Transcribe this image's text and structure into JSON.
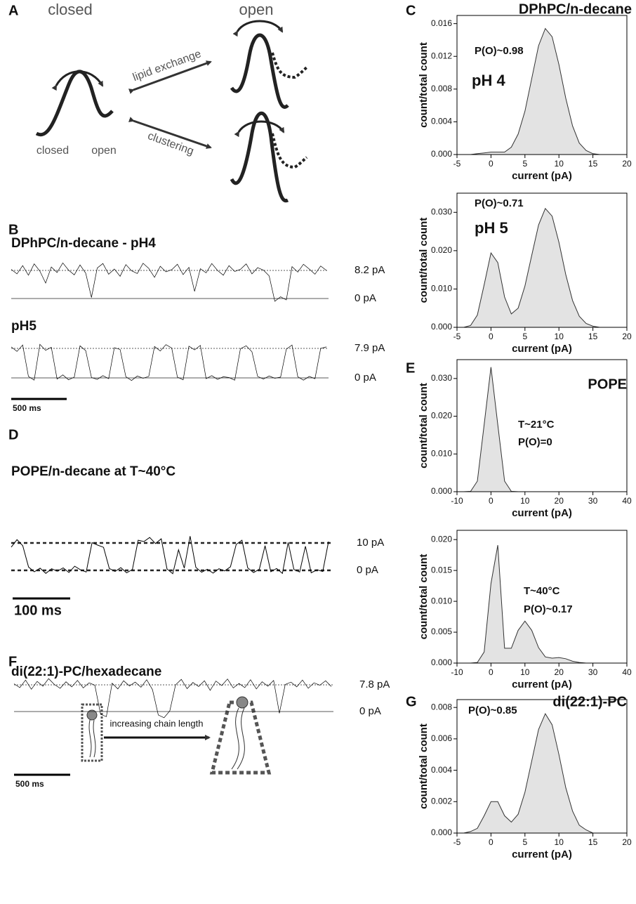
{
  "panel_letters": [
    "A",
    "B",
    "C",
    "D",
    "E",
    "F",
    "G"
  ],
  "diagram": {
    "closed": "closed",
    "open": "open",
    "lipid_exchange": "lipid exchange",
    "clustering": "clustering",
    "state_closed": "closed",
    "state_open": "open"
  },
  "traces": [
    {
      "title": "DPhPC/n-decane - pH4",
      "levels": [
        {
          "value": 8.2,
          "label": "8.2 pA"
        },
        {
          "value": 0,
          "label": "0 pA"
        }
      ],
      "values": [
        8.5,
        7.2,
        9.6,
        6.8,
        10.1,
        8.0,
        4.5,
        9.2,
        7.6,
        10.4,
        8.3,
        6.9,
        9.8,
        7.4,
        0.3,
        8.9,
        10.2,
        7.1,
        8.6,
        6.5,
        9.9,
        8.1,
        7.3,
        10.3,
        8.8,
        6.2,
        9.4,
        7.8,
        8.4,
        10.0,
        7.0,
        9.1,
        2.1,
        8.7,
        7.5,
        10.2,
        8.2,
        6.8,
        9.6,
        7.9,
        8.5,
        10.1,
        7.2,
        9.0,
        8.3,
        6.6,
        -0.8,
        0.5,
        -0.4,
        9.3,
        7.7,
        10.0,
        8.6,
        7.1,
        9.5,
        8.2
      ]
    },
    {
      "title": "pH5",
      "levels": [
        {
          "value": 7.9,
          "label": "7.9 pA"
        },
        {
          "value": 0,
          "label": "0 pA"
        }
      ],
      "scale_bar": "500 ms",
      "values": [
        8.3,
        7.1,
        8.8,
        0.4,
        -0.6,
        9.0,
        7.4,
        8.2,
        -0.3,
        0.8,
        -0.5,
        0.2,
        8.6,
        7.3,
        0.1,
        -0.4,
        0.6,
        -0.2,
        8.1,
        7.6,
        0.3,
        -0.7,
        0.5,
        -0.1,
        0.4,
        8.4,
        7.2,
        8.9,
        8.0,
        0.2,
        -0.5,
        8.5,
        7.5,
        8.7,
        -0.2,
        0.6,
        -0.4,
        0.3,
        0.1,
        -0.6,
        7.8,
        8.6,
        7.0,
        0.4,
        -0.3,
        0.5,
        -0.1,
        0.2,
        7.7,
        8.8,
        0.3,
        -0.6,
        0.4,
        -0.2,
        7.9,
        8.3
      ]
    },
    {
      "title": "POPE/n-decane at T~40°C",
      "levels": [
        {
          "value": 10,
          "label": "10 pA"
        },
        {
          "value": 0,
          "label": "0 pA"
        }
      ],
      "scale_bar": "100 ms",
      "values": [
        8.5,
        11.2,
        9.0,
        1.2,
        -0.5,
        0.8,
        -1.1,
        0.6,
        -0.3,
        0.9,
        -0.8,
        1.5,
        0.2,
        -0.6,
        10.1,
        9.2,
        8.4,
        0.7,
        -0.4,
        1.0,
        -0.9,
        0.3,
        11.0,
        10.5,
        12.0,
        9.8,
        11.5,
        0.5,
        -1.2,
        7.5,
        0.8,
        12.5,
        1.1,
        -0.7,
        0.4,
        -1.0,
        0.6,
        -0.2,
        1.3,
        9.5,
        11.0,
        0.9,
        -0.8,
        0.4,
        9.0,
        -0.5,
        0.7,
        -1.1,
        10.2,
        0.3,
        -0.6,
        8.8,
        -0.9,
        0.2,
        -0.4,
        10.5
      ]
    },
    {
      "title": "di(22:1)-PC/hexadecane",
      "chain_label": "increasing chain length",
      "levels": [
        {
          "value": 7.8,
          "label": "7.8 pA"
        },
        {
          "value": 0,
          "label": "0 pA"
        }
      ],
      "scale_bar": "500 ms",
      "values": [
        8.1,
        7.0,
        9.2,
        6.5,
        8.8,
        7.4,
        9.6,
        7.9,
        6.8,
        8.7,
        7.2,
        9.1,
        6.9,
        8.4,
        7.7,
        -0.8,
        -1.5,
        8.3,
        6.6,
        9.0,
        7.5,
        8.6,
        7.1,
        9.3,
        6.4,
        -1.0,
        -1.8,
        0.2,
        7.8,
        9.4,
        6.7,
        8.5,
        7.3,
        9.0,
        6.2,
        8.9,
        7.6,
        9.5,
        6.9,
        8.2,
        7.0,
        9.3,
        6.6,
        8.7,
        7.4,
        9.1,
        -0.5,
        7.9,
        8.6,
        7.2,
        9.2,
        6.8,
        8.4,
        7.7,
        9.0,
        7.3
      ]
    }
  ],
  "chart_data": [
    {
      "type": "area",
      "heading": "DPhPC/n-decane",
      "annotations": [
        "P(O)~0.98",
        "pH 4"
      ],
      "xlabel": "current (pA)",
      "ylabel": "count/total count",
      "color": "#e3e3e3",
      "x": [
        -5,
        -4,
        -3,
        -2,
        -1,
        0,
        1,
        2,
        3,
        4,
        5,
        6,
        7,
        8,
        9,
        10,
        11,
        12,
        13,
        14,
        15,
        16,
        17,
        18,
        19,
        20
      ],
      "values": [
        0,
        0,
        0,
        0.0001,
        0.0002,
        0.0003,
        0.0003,
        0.0003,
        0.0009,
        0.0025,
        0.0053,
        0.0093,
        0.0133,
        0.0154,
        0.0144,
        0.011,
        0.0069,
        0.0035,
        0.0014,
        0.0005,
        0.0001,
        0,
        0,
        0,
        0,
        0
      ],
      "xlim": [
        -5,
        20
      ],
      "xticks": [
        -5,
        0,
        5,
        10,
        15,
        20
      ],
      "ylim": [
        0,
        0.017
      ],
      "yticks": [
        {
          "value": 0,
          "label": "0.000"
        },
        {
          "value": 0.004,
          "label": "0.004"
        },
        {
          "value": 0.008,
          "label": "0.008"
        },
        {
          "value": 0.012,
          "label": "0.012"
        },
        {
          "value": 0.016,
          "label": "0.016"
        }
      ]
    },
    {
      "type": "area",
      "annotations": [
        "P(O)~0.71",
        "pH 5"
      ],
      "xlabel": "current (pA)",
      "ylabel": "count/total count",
      "color": "#e3e3e3",
      "x": [
        -5,
        -4,
        -3,
        -2,
        -1,
        0,
        1,
        2,
        3,
        4,
        5,
        6,
        7,
        8,
        9,
        10,
        11,
        12,
        13,
        14,
        15,
        16,
        17,
        18,
        19,
        20
      ],
      "values": [
        0,
        0,
        0.0005,
        0.0032,
        0.0111,
        0.0194,
        0.0169,
        0.0079,
        0.0035,
        0.005,
        0.0108,
        0.0188,
        0.0267,
        0.031,
        0.029,
        0.0222,
        0.0138,
        0.007,
        0.0029,
        0.001,
        0.0003,
        0,
        0,
        0,
        0,
        0
      ],
      "xlim": [
        -5,
        20
      ],
      "xticks": [
        -5,
        0,
        5,
        10,
        15,
        20
      ],
      "ylim": [
        0,
        0.035
      ],
      "yticks": [
        {
          "value": 0,
          "label": "0.000"
        },
        {
          "value": 0.01,
          "label": "0.010"
        },
        {
          "value": 0.02,
          "label": "0.020"
        },
        {
          "value": 0.03,
          "label": "0.030"
        }
      ]
    },
    {
      "type": "area",
      "heading": "POPE",
      "annotations": [
        "T~21°C",
        "P(O)=0"
      ],
      "xlabel": "current (pA)",
      "ylabel": "count/total count",
      "color": "#e3e3e3",
      "x": [
        -10,
        -8,
        -6,
        -4,
        -2,
        0,
        2,
        4,
        6,
        8,
        10,
        12,
        14,
        16,
        18,
        20,
        22,
        24,
        26,
        28,
        30,
        32,
        34,
        36,
        38,
        40
      ],
      "values": [
        0,
        0,
        0.0001,
        0.0028,
        0.0178,
        0.033,
        0.0178,
        0.0028,
        0.0001,
        0,
        0,
        0,
        0,
        0,
        0,
        0,
        0,
        0,
        0,
        0,
        0,
        0,
        0,
        0,
        0,
        0
      ],
      "xlim": [
        -10,
        40
      ],
      "xticks": [
        -10,
        0,
        10,
        20,
        30,
        40
      ],
      "ylim": [
        0,
        0.035
      ],
      "yticks": [
        {
          "value": 0,
          "label": "0.000"
        },
        {
          "value": 0.01,
          "label": "0.010"
        },
        {
          "value": 0.02,
          "label": "0.020"
        },
        {
          "value": 0.03,
          "label": "0.030"
        }
      ]
    },
    {
      "type": "area",
      "annotations": [
        "T~40°C",
        "P(O)~0.17"
      ],
      "xlabel": "current (pA)",
      "ylabel": "count/total count",
      "color": "#e3e3e3",
      "x": [
        -10,
        -8,
        -6,
        -4,
        -2,
        0,
        2,
        4,
        6,
        8,
        10,
        12,
        14,
        16,
        18,
        20,
        22,
        24,
        26,
        28,
        30,
        32,
        34,
        36,
        38,
        40
      ],
      "values": [
        0,
        0,
        0,
        0.0001,
        0.0018,
        0.0129,
        0.0191,
        0.0024,
        0.0024,
        0.0053,
        0.0068,
        0.0053,
        0.0025,
        0.001,
        0.0008,
        0.0009,
        0.0007,
        0.0003,
        0.0001,
        0,
        0,
        0,
        0,
        0,
        0,
        0
      ],
      "xlim": [
        -10,
        40
      ],
      "xticks": [
        -10,
        0,
        10,
        20,
        30,
        40
      ],
      "ylim": [
        0,
        0.0215
      ],
      "yticks": [
        {
          "value": 0,
          "label": "0.000"
        },
        {
          "value": 0.005,
          "label": "0.005"
        },
        {
          "value": 0.01,
          "label": "0.010"
        },
        {
          "value": 0.015,
          "label": "0.015"
        },
        {
          "value": 0.02,
          "label": "0.020"
        }
      ]
    },
    {
      "type": "area",
      "heading": "di(22:1)-PC",
      "annotations": [
        "P(O)~0.85"
      ],
      "xlabel": "current (pA)",
      "ylabel": "count/total count",
      "color": "#e3e3e3",
      "x": [
        -5,
        -4,
        -3,
        -2,
        -1,
        0,
        1,
        2,
        3,
        4,
        5,
        6,
        7,
        8,
        9,
        10,
        11,
        12,
        13,
        14,
        15,
        16,
        17,
        18,
        19,
        20
      ],
      "values": [
        0,
        0,
        0.0001,
        0.0003,
        0.0011,
        0.002,
        0.002,
        0.0011,
        0.0007,
        0.0012,
        0.0026,
        0.0046,
        0.0066,
        0.0076,
        0.0069,
        0.005,
        0.0029,
        0.0014,
        0.0005,
        0.0002,
        0,
        0,
        0,
        0,
        0,
        0
      ],
      "xlim": [
        -5,
        20
      ],
      "xticks": [
        -5,
        0,
        5,
        10,
        15,
        20
      ],
      "ylim": [
        0,
        0.0085
      ],
      "yticks": [
        {
          "value": 0,
          "label": "0.000"
        },
        {
          "value": 0.002,
          "label": "0.002"
        },
        {
          "value": 0.004,
          "label": "0.004"
        },
        {
          "value": 0.006,
          "label": "0.006"
        },
        {
          "value": 0.008,
          "label": "0.008"
        }
      ]
    }
  ]
}
